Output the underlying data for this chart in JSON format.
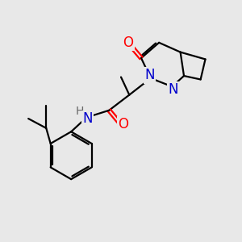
{
  "bg_color": "#e8e8e8",
  "atom_colors": {
    "N": "#0000cc",
    "O": "#ff0000",
    "H": "#666666"
  },
  "bond_lw": 1.6,
  "font_size": 12,
  "font_size_h": 10
}
